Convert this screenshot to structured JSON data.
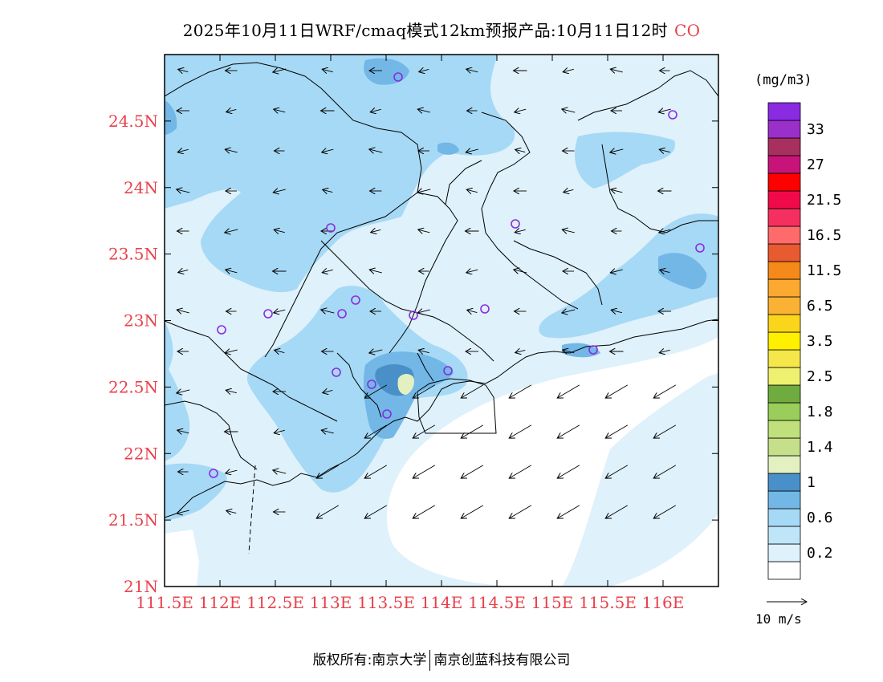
{
  "title": {
    "main": "2025年10月11日WRF/cmaq模式12km预报产品:10月11日12时",
    "species": "CO",
    "species_color": "#e8404a"
  },
  "map": {
    "lon_range": [
      111.5,
      116.5
    ],
    "lat_range": [
      21.0,
      25.0
    ],
    "x_ticks": [
      "111.5E",
      "112E",
      "112.5E",
      "113E",
      "113.5E",
      "114E",
      "114.5E",
      "115E",
      "115.5E",
      "116E"
    ],
    "y_ticks": [
      "21N",
      "21.5N",
      "22N",
      "22.5N",
      "23N",
      "23.5N",
      "24N",
      "24.5N"
    ],
    "tick_color": "#e8404a",
    "station_color": "#8a2be2"
  },
  "legend": {
    "unit": "(mg/m3)",
    "levels": [
      {
        "label": "",
        "color": "#ffffff"
      },
      {
        "label": "0.2",
        "color": "#dff1fb"
      },
      {
        "label": "",
        "color": "#bfe6f8"
      },
      {
        "label": "0.6",
        "color": "#a6d9f5"
      },
      {
        "label": "",
        "color": "#72b7e6"
      },
      {
        "label": "1",
        "color": "#4a90c8"
      },
      {
        "label": "",
        "color": "#e3f0c0"
      },
      {
        "label": "1.4",
        "color": "#c5df8a"
      },
      {
        "label": "",
        "color": "#bfe07a"
      },
      {
        "label": "1.8",
        "color": "#9acd5a"
      },
      {
        "label": "",
        "color": "#6fab3f"
      },
      {
        "label": "2.5",
        "color": "#eef070"
      },
      {
        "label": "",
        "color": "#f5e64a"
      },
      {
        "label": "3.5",
        "color": "#fff000"
      },
      {
        "label": "",
        "color": "#fbd51a"
      },
      {
        "label": "6.5",
        "color": "#f9b233"
      },
      {
        "label": "",
        "color": "#fba930"
      },
      {
        "label": "11.5",
        "color": "#f58a1a"
      },
      {
        "label": "",
        "color": "#e85a30"
      },
      {
        "label": "16.5",
        "color": "#ff6a6a"
      },
      {
        "label": "",
        "color": "#f53060"
      },
      {
        "label": "21.5",
        "color": "#f00a4a"
      },
      {
        "label": "",
        "color": "#ff0000"
      },
      {
        "label": "27",
        "color": "#c8147a"
      },
      {
        "label": "",
        "color": "#a8305e"
      },
      {
        "label": "33",
        "color": "#9b2fc9"
      },
      {
        "label": "",
        "color": "#8a2be2"
      }
    ]
  },
  "wind_reference": {
    "label": "10 m/s"
  },
  "footer": {
    "left": "版权所有:南京大学",
    "right": "南京创蓝科技有限公司"
  }
}
